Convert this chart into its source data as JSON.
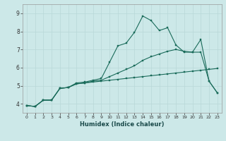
{
  "xlabel": "Humidex (Indice chaleur)",
  "bg_color": "#cce8e8",
  "grid_color": "#b8d8d8",
  "line_color": "#1a6b5a",
  "xlim": [
    -0.5,
    23.5
  ],
  "ylim": [
    3.5,
    9.5
  ],
  "xticks": [
    0,
    1,
    2,
    3,
    4,
    5,
    6,
    7,
    8,
    9,
    10,
    11,
    12,
    13,
    14,
    15,
    16,
    17,
    18,
    19,
    20,
    21,
    22,
    23
  ],
  "yticks": [
    4,
    5,
    6,
    7,
    8,
    9
  ],
  "bottom_y": [
    3.9,
    3.85,
    4.2,
    4.2,
    4.85,
    4.9,
    5.1,
    5.15,
    5.2,
    5.25,
    5.3,
    5.35,
    5.4,
    5.45,
    5.5,
    5.55,
    5.6,
    5.65,
    5.7,
    5.75,
    5.8,
    5.85,
    5.9,
    5.95
  ],
  "mid_y": [
    3.9,
    3.85,
    4.2,
    4.2,
    4.85,
    4.9,
    5.1,
    5.15,
    5.25,
    5.3,
    5.5,
    5.7,
    5.9,
    6.1,
    6.4,
    6.6,
    6.75,
    6.9,
    7.0,
    6.9,
    6.85,
    6.85,
    5.25,
    4.6
  ],
  "top_y": [
    3.9,
    3.85,
    4.2,
    4.2,
    4.85,
    4.9,
    5.15,
    5.2,
    5.3,
    5.4,
    6.3,
    7.2,
    7.35,
    7.95,
    8.85,
    8.6,
    8.05,
    8.2,
    7.25,
    6.85,
    6.85,
    7.55,
    5.25,
    4.6
  ]
}
